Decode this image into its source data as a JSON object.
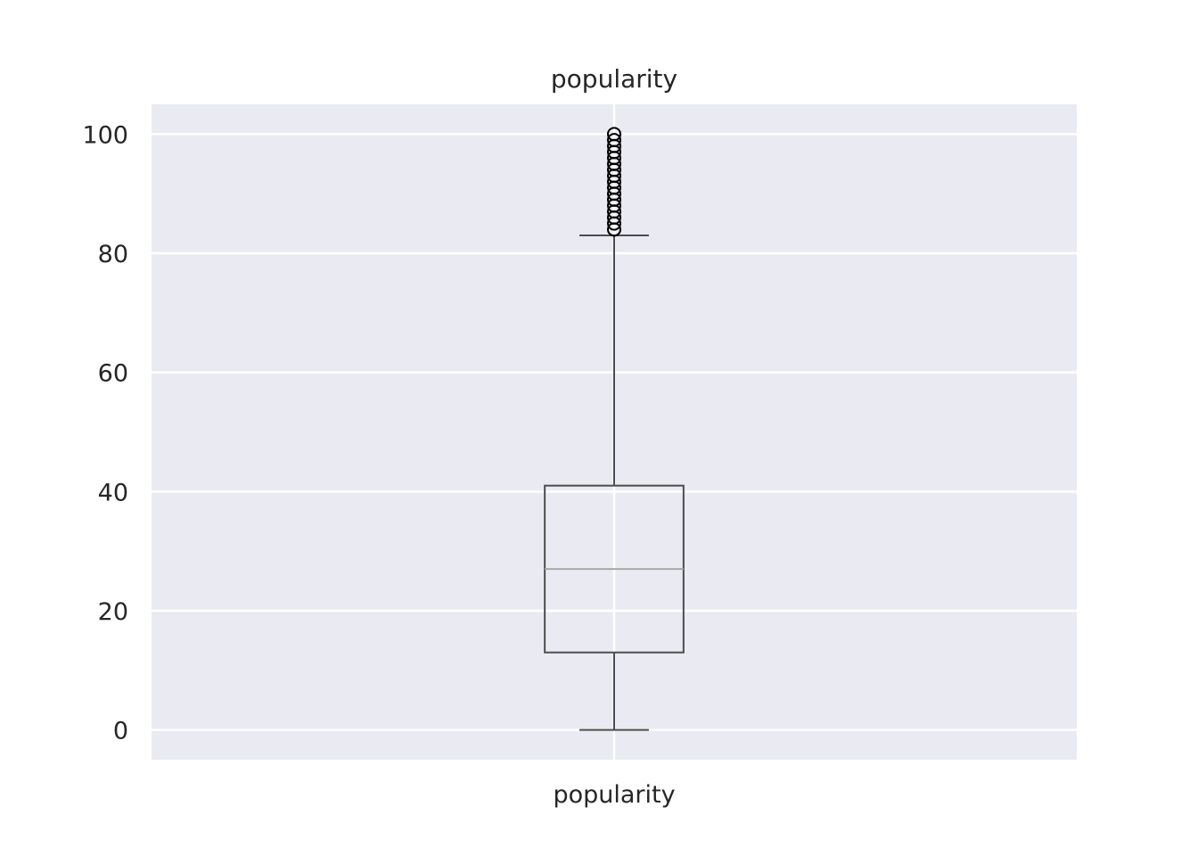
{
  "chart_data": {
    "type": "box",
    "title": "popularity",
    "xlabel": "",
    "ylabel": "",
    "categories": [
      "popularity"
    ],
    "ylim": [
      -5,
      105
    ],
    "yticks": [
      0,
      20,
      40,
      60,
      80,
      100
    ],
    "ytick_labels": [
      "0",
      "20",
      "40",
      "60",
      "80",
      "100"
    ],
    "grid": true,
    "boxes": [
      {
        "name": "popularity",
        "whisker_low": 0,
        "q1": 13,
        "median": 27,
        "q3": 41,
        "whisker_high": 83,
        "outliers": [
          84,
          85,
          86,
          87,
          88,
          89,
          90,
          91,
          92,
          93,
          94,
          95,
          96,
          97,
          98,
          99,
          100
        ]
      }
    ],
    "colors": {
      "background": "#eaeaf2",
      "grid": "#ffffff",
      "box": "#4d4d4d",
      "median": "#a8a8a8",
      "outlier_edge": "#000000"
    }
  }
}
